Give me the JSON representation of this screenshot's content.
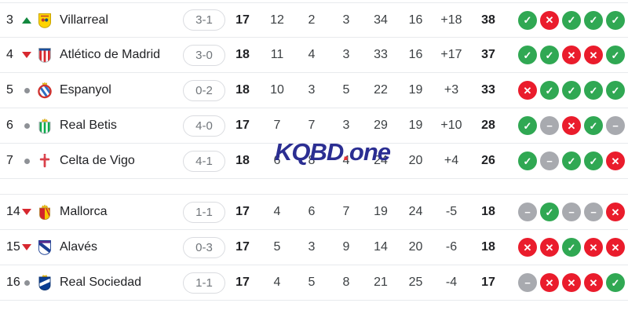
{
  "watermark": {
    "prefix": "KQBD",
    "dot": ".",
    "suffix": "one"
  },
  "icons": {
    "win": "✓",
    "loss": "✕",
    "draw": "−"
  },
  "colors": {
    "win": "#30a853",
    "loss": "#ea1c2c",
    "draw": "#a8aaaf",
    "rank_up": "#12883e",
    "rank_down": "#d7282f",
    "neutral_dot": "#8e9196",
    "watermark_blue": "#2b2e92",
    "watermark_red": "#e53238",
    "border": "#e8eaed",
    "text_primary": "#202124",
    "text_secondary": "#3c4043",
    "pill_border": "#dadce0",
    "pill_text": "#70757a"
  },
  "table": {
    "section_break_before_index": 5,
    "rows": [
      {
        "pos": 3,
        "movement": "up",
        "crest": "villarreal-crest",
        "team": "Villarreal",
        "last_result": "3-1",
        "played": 17,
        "wins": 12,
        "draws": 2,
        "losses": 3,
        "goals_for": 34,
        "goals_against": 16,
        "goal_diff": "+18",
        "points": 38,
        "form": [
          "win",
          "loss",
          "win",
          "win",
          "win"
        ]
      },
      {
        "pos": 4,
        "movement": "down",
        "crest": "atletico-madrid-crest",
        "team": "Atlético de Madrid",
        "last_result": "3-0",
        "played": 18,
        "wins": 11,
        "draws": 4,
        "losses": 3,
        "goals_for": 33,
        "goals_against": 16,
        "goal_diff": "+17",
        "points": 37,
        "form": [
          "win",
          "win",
          "loss",
          "loss",
          "win"
        ]
      },
      {
        "pos": 5,
        "movement": "same",
        "crest": "espanyol-crest",
        "team": "Espanyol",
        "last_result": "0-2",
        "played": 18,
        "wins": 10,
        "draws": 3,
        "losses": 5,
        "goals_for": 22,
        "goals_against": 19,
        "goal_diff": "+3",
        "points": 33,
        "form": [
          "loss",
          "win",
          "win",
          "win",
          "win"
        ]
      },
      {
        "pos": 6,
        "movement": "same",
        "crest": "real-betis-crest",
        "team": "Real Betis",
        "last_result": "4-0",
        "played": 17,
        "wins": 7,
        "draws": 7,
        "losses": 3,
        "goals_for": 29,
        "goals_against": 19,
        "goal_diff": "+10",
        "points": 28,
        "form": [
          "win",
          "draw",
          "loss",
          "win",
          "draw"
        ]
      },
      {
        "pos": 7,
        "movement": "same",
        "crest": "celta-de-vigo-crest",
        "team": "Celta de Vigo",
        "last_result": "4-1",
        "played": 18,
        "wins": 6,
        "draws": 8,
        "losses": 4,
        "goals_for": 24,
        "goals_against": 20,
        "goal_diff": "+4",
        "points": 26,
        "form": [
          "win",
          "draw",
          "win",
          "win",
          "loss"
        ]
      },
      {
        "pos": 14,
        "movement": "down",
        "crest": "mallorca-crest",
        "team": "Mallorca",
        "last_result": "1-1",
        "played": 17,
        "wins": 4,
        "draws": 6,
        "losses": 7,
        "goals_for": 19,
        "goals_against": 24,
        "goal_diff": "-5",
        "points": 18,
        "form": [
          "draw",
          "win",
          "draw",
          "draw",
          "loss"
        ]
      },
      {
        "pos": 15,
        "movement": "down",
        "crest": "alaves-crest",
        "team": "Alavés",
        "last_result": "0-3",
        "played": 17,
        "wins": 5,
        "draws": 3,
        "losses": 9,
        "goals_for": 14,
        "goals_against": 20,
        "goal_diff": "-6",
        "points": 18,
        "form": [
          "loss",
          "loss",
          "win",
          "loss",
          "loss"
        ]
      },
      {
        "pos": 16,
        "movement": "same",
        "crest": "real-sociedad-crest",
        "team": "Real Sociedad",
        "last_result": "1-1",
        "played": 17,
        "wins": 4,
        "draws": 5,
        "losses": 8,
        "goals_for": 21,
        "goals_against": 25,
        "goal_diff": "-4",
        "points": 17,
        "form": [
          "draw",
          "loss",
          "loss",
          "loss",
          "win"
        ]
      }
    ]
  }
}
